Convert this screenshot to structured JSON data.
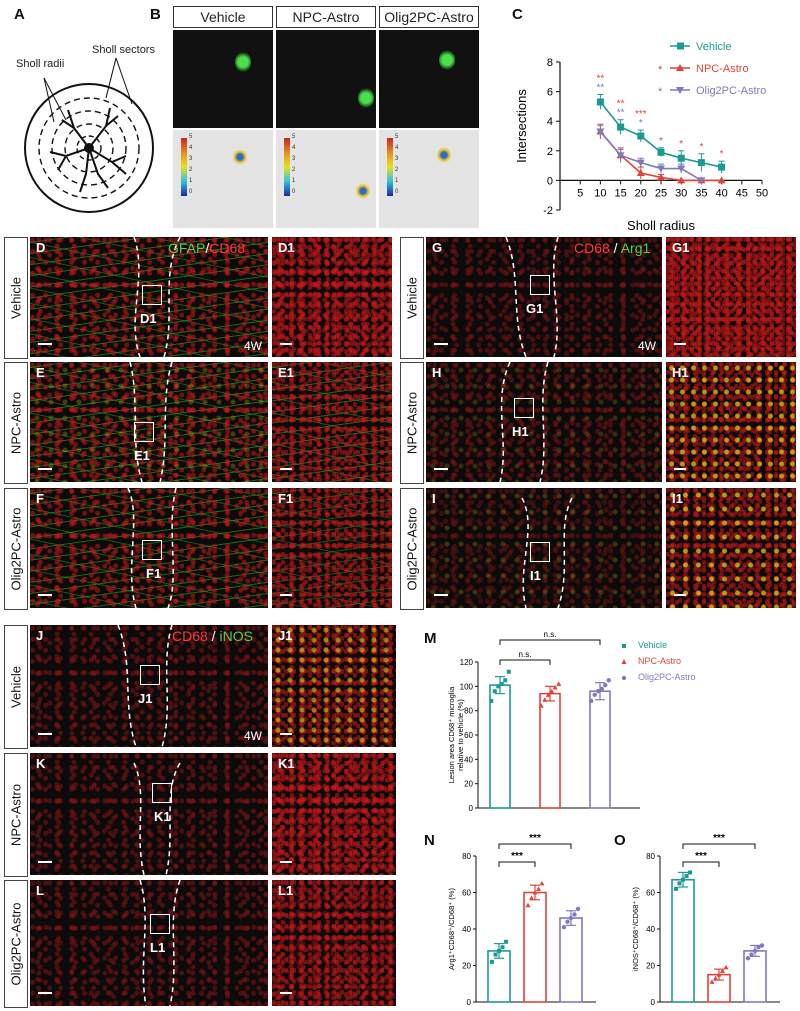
{
  "panels": {
    "A": "A",
    "B": "B",
    "C": "C",
    "D": "D",
    "D1": "D1",
    "E": "E",
    "E1": "E1",
    "F": "F",
    "F1": "F1",
    "G": "G",
    "G1": "G1",
    "H": "H",
    "H1": "H1",
    "I": "I",
    "I1": "I1",
    "J": "J",
    "J1": "J1",
    "K": "K",
    "K1": "K1",
    "L": "L",
    "L1": "L1",
    "M": "M",
    "N": "N",
    "O": "O"
  },
  "groups": {
    "vehicle": "Vehicle",
    "npc": "NPC-Astro",
    "olig": "Olig2PC-Astro"
  },
  "colors": {
    "vehicle": "#1a9a93",
    "npc": "#e0443a",
    "olig": "#7e7ac0"
  },
  "sholl": {
    "radii_label": "Sholl radii",
    "sectors_label": "Sholl sectors"
  },
  "heat_ticks": [
    "5",
    "4",
    "3",
    "2",
    "1",
    "0"
  ],
  "stains": {
    "d": {
      "a": "GFAP",
      "sep": "/",
      "b": "CD68"
    },
    "g": {
      "a": "CD68",
      "sep": " / ",
      "b": "Arg1"
    },
    "j": {
      "a": "CD68",
      "sep": " / ",
      "b": "iNOS"
    }
  },
  "timepoint": "4W",
  "chart_data": [
    {
      "id": "C",
      "type": "line",
      "xlabel": "Sholl radius",
      "ylabel": "Intersections",
      "xlim": [
        0,
        50
      ],
      "ylim": [
        -2,
        8
      ],
      "xticks": [
        "5",
        "10",
        "15",
        "20",
        "25",
        "30",
        "35",
        "40",
        "45",
        "50"
      ],
      "yticks": [
        "-2",
        "0",
        "2",
        "4",
        "6",
        "8"
      ],
      "x": [
        10,
        15,
        20,
        25,
        30,
        35,
        40
      ],
      "series": [
        {
          "name": "Vehicle",
          "values": [
            5.3,
            3.6,
            3.0,
            1.9,
            1.5,
            1.2,
            0.9
          ],
          "err": [
            0.5,
            0.5,
            0.4,
            0.3,
            0.5,
            0.6,
            0.4
          ]
        },
        {
          "name": "NPC-Astro",
          "values": [
            3.3,
            1.7,
            0.5,
            0.2,
            0,
            0,
            0
          ],
          "err": [
            0.5,
            0.4,
            0.4,
            0.2,
            0,
            0,
            0
          ]
        },
        {
          "name": "Olig2PC-Astro",
          "values": [
            3.3,
            1.7,
            1.2,
            0.8,
            0.8,
            0,
            null
          ],
          "err": [
            0.4,
            0.5,
            0.3,
            0.3,
            0.3,
            0,
            0
          ]
        }
      ],
      "annotations": [
        {
          "x": 10,
          "top": "**",
          "bottom": "**"
        },
        {
          "x": 15,
          "top": "**",
          "bottom": "**"
        },
        {
          "x": 20,
          "top": "***",
          "bottom": "*"
        },
        {
          "x": 25,
          "top": "*",
          "bottom": ""
        },
        {
          "x": 30,
          "top": "*",
          "bottom": ""
        },
        {
          "x": 35,
          "top": "*",
          "bottom": ""
        },
        {
          "x": 40,
          "top": "*",
          "bottom": ""
        }
      ],
      "legend": [
        "Vehicle",
        "NPC-Astro",
        "Olig2PC-Astro"
      ],
      "legend_marks": [
        "",
        "*",
        "*"
      ]
    },
    {
      "id": "M",
      "type": "bar",
      "ylabel": [
        "Lesion area CD68⁺ microglia",
        "relative to vehicle (%)"
      ],
      "ylim": [
        0,
        120
      ],
      "yticks": [
        "0",
        "20",
        "40",
        "60",
        "80",
        "100",
        "120"
      ],
      "categories": [
        "Vehicle",
        "NPC-Astro",
        "Olig2PC-Astro"
      ],
      "values": [
        101,
        94,
        96
      ],
      "err": [
        7,
        6,
        7
      ],
      "points": [
        [
          88,
          96,
          100,
          102,
          105,
          112
        ],
        [
          84,
          89,
          93,
          96,
          99,
          102
        ],
        [
          88,
          93,
          96,
          98,
          101,
          105
        ]
      ],
      "brackets": [
        {
          "from": 0,
          "to": 1,
          "label": "n.s."
        },
        {
          "from": 0,
          "to": 2,
          "label": "n.s."
        }
      ],
      "legend": [
        "Vehicle",
        "NPC-Astro",
        "Olig2PC-Astro"
      ]
    },
    {
      "id": "N",
      "type": "bar",
      "ylabel": [
        "Arg1⁺CD68⁺/CD68⁺ (%)"
      ],
      "ylim": [
        0,
        80
      ],
      "yticks": [
        "0",
        "20",
        "40",
        "60",
        "80"
      ],
      "categories": [
        "Vehicle",
        "NPC-Astro",
        "Olig2PC-Astro"
      ],
      "values": [
        28,
        60,
        46
      ],
      "err": [
        4,
        4,
        4
      ],
      "points": [
        [
          22,
          26,
          28,
          30,
          33
        ],
        [
          53,
          57,
          60,
          62,
          65
        ],
        [
          41,
          44,
          46,
          48,
          51
        ]
      ],
      "brackets": [
        {
          "from": 0,
          "to": 1,
          "label": "***"
        },
        {
          "from": 0,
          "to": 2,
          "label": "***"
        }
      ]
    },
    {
      "id": "O",
      "type": "bar",
      "ylabel": [
        "iNOS⁺CD68⁺/CD68⁺ (%)"
      ],
      "ylim": [
        0,
        80
      ],
      "yticks": [
        "0",
        "20",
        "40",
        "60",
        "80"
      ],
      "categories": [
        "Vehicle",
        "NPC-Astro",
        "Olig2PC-Astro"
      ],
      "values": [
        67,
        15,
        28
      ],
      "err": [
        4,
        3,
        3
      ],
      "points": [
        [
          62,
          65,
          67,
          69,
          71
        ],
        [
          11,
          13,
          15,
          17,
          19
        ],
        [
          24,
          26,
          28,
          30,
          31
        ]
      ],
      "brackets": [
        {
          "from": 0,
          "to": 1,
          "label": "***"
        },
        {
          "from": 0,
          "to": 2,
          "label": "***"
        }
      ]
    }
  ]
}
